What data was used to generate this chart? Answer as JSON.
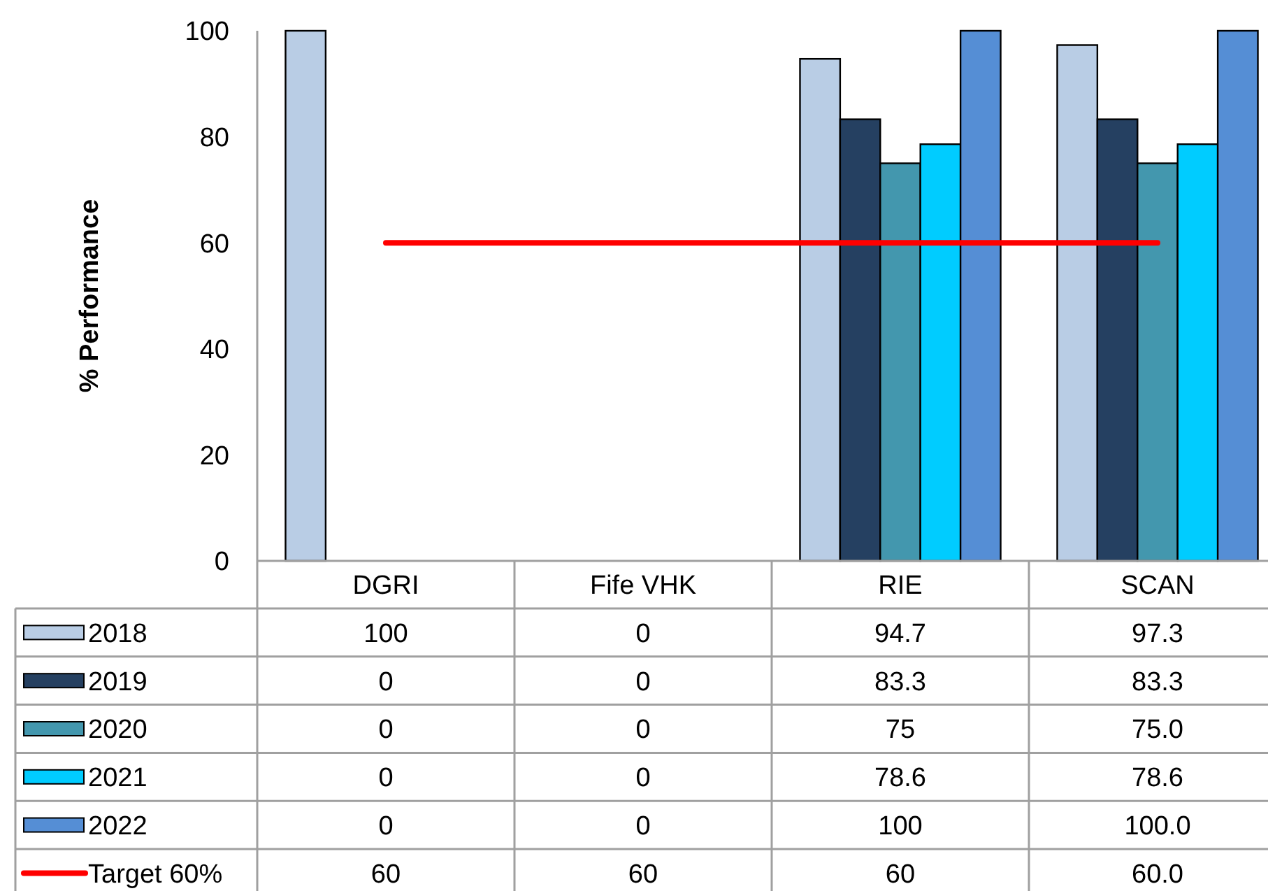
{
  "chart_data": {
    "type": "bar",
    "ylabel": "% Performance",
    "categories": [
      "DGRI",
      "Fife VHK",
      "RIE",
      "SCAN"
    ],
    "series": [
      {
        "name": "2018",
        "color": "#b9cde5",
        "values": [
          100,
          0,
          94.7,
          97.3
        ],
        "value_labels": [
          "100",
          "0",
          "94.7",
          "97.3"
        ]
      },
      {
        "name": "2019",
        "color": "#254061",
        "values": [
          0,
          0,
          83.3,
          83.3
        ],
        "value_labels": [
          "0",
          "0",
          "83.3",
          "83.3"
        ]
      },
      {
        "name": "2020",
        "color": "#4397ae",
        "values": [
          0,
          0,
          75,
          75
        ],
        "value_labels": [
          "0",
          "0",
          "75",
          "75.0"
        ]
      },
      {
        "name": "2021",
        "color": "#00ccff",
        "values": [
          0,
          0,
          78.6,
          78.6
        ],
        "value_labels": [
          "0",
          "0",
          "78.6",
          "78.6"
        ]
      },
      {
        "name": "2022",
        "color": "#558ed5",
        "values": [
          0,
          0,
          100,
          100
        ],
        "value_labels": [
          "0",
          "0",
          "100",
          "100.0"
        ]
      },
      {
        "name": "Target 60%",
        "type": "line",
        "color": "#ff0000",
        "values": [
          60,
          60,
          60,
          60
        ],
        "value_labels": [
          "60",
          "60",
          "60",
          "60.0"
        ]
      }
    ],
    "ylim": [
      0,
      100
    ],
    "yticks": [
      0,
      20,
      40,
      60,
      80,
      100
    ],
    "legend": "bottom"
  }
}
